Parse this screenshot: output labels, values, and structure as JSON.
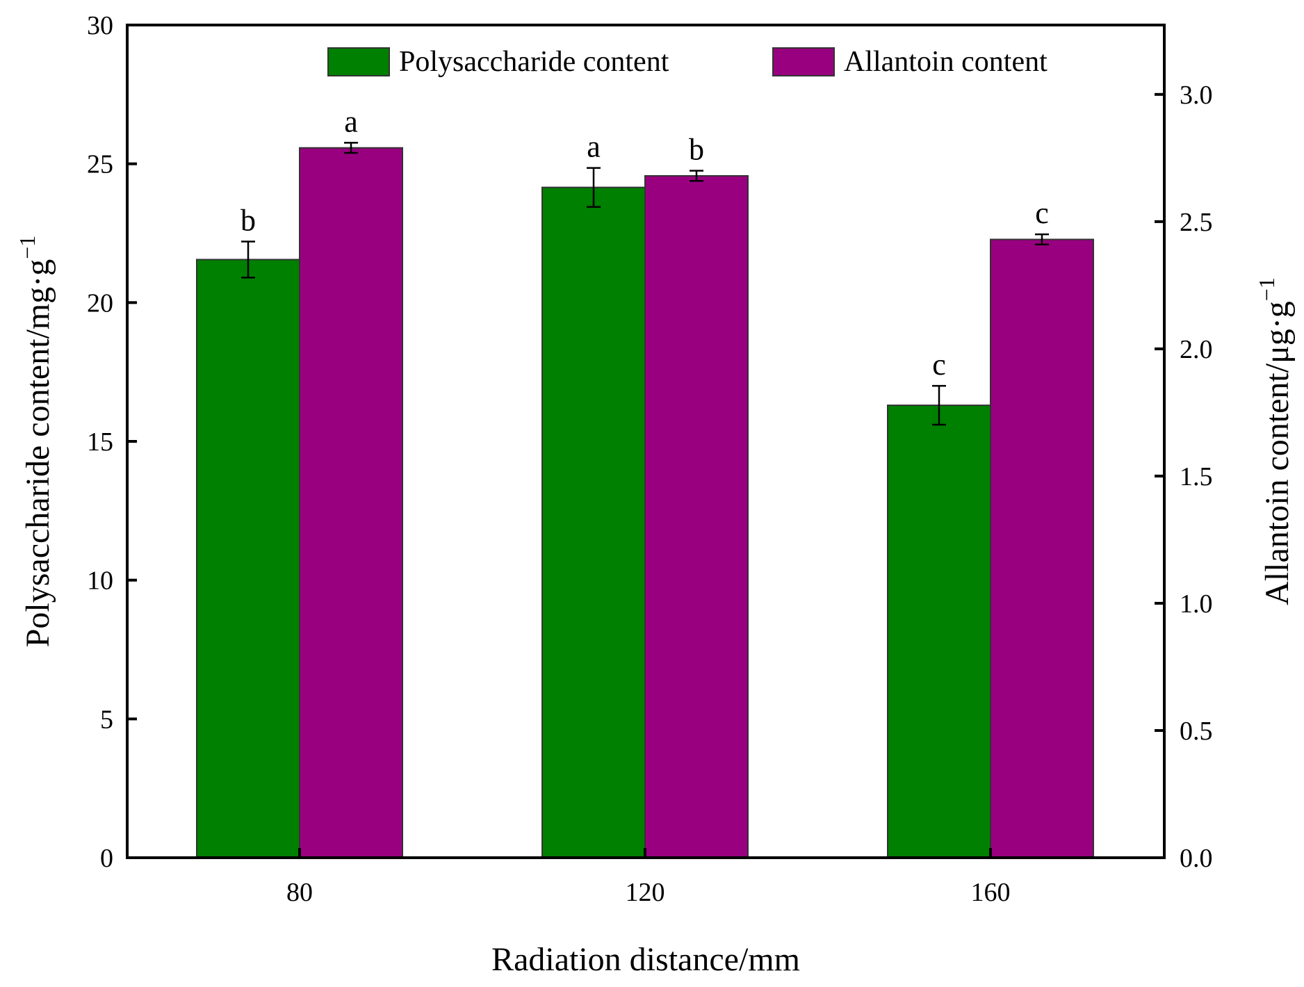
{
  "chart_data": {
    "type": "bar",
    "title": "",
    "xlabel": "Radiation distance/mm",
    "ylabel": {
      "text": "Polysaccharide content/mg·g",
      "sup": "−1"
    },
    "y2label": {
      "text": "Allantoin content/μg·g",
      "sup": "−1"
    },
    "categories": [
      "80",
      "120",
      "160"
    ],
    "ylim": [
      0,
      30
    ],
    "yticks": [
      "0",
      "5",
      "10",
      "15",
      "20",
      "25",
      "30"
    ],
    "y2lim": [
      0,
      3.2727
    ],
    "y2ticks": [
      "0.0",
      "0.5",
      "1.0",
      "1.5",
      "2.0",
      "2.5",
      "3.0"
    ],
    "legend_position": "top",
    "grid": false,
    "series": [
      {
        "name": "Polysaccharide content",
        "axis": "left",
        "color": "#008000",
        "values": [
          21.55,
          24.15,
          16.3
        ],
        "errors": [
          0.65,
          0.7,
          0.7
        ],
        "labels": [
          "b",
          "a",
          "c"
        ]
      },
      {
        "name": "Allantoin content",
        "axis": "right",
        "color": "#990080",
        "values": [
          2.79,
          2.68,
          2.43
        ],
        "errors": [
          0.02,
          0.02,
          0.02
        ],
        "labels": [
          "a",
          "b",
          "c"
        ]
      }
    ]
  }
}
